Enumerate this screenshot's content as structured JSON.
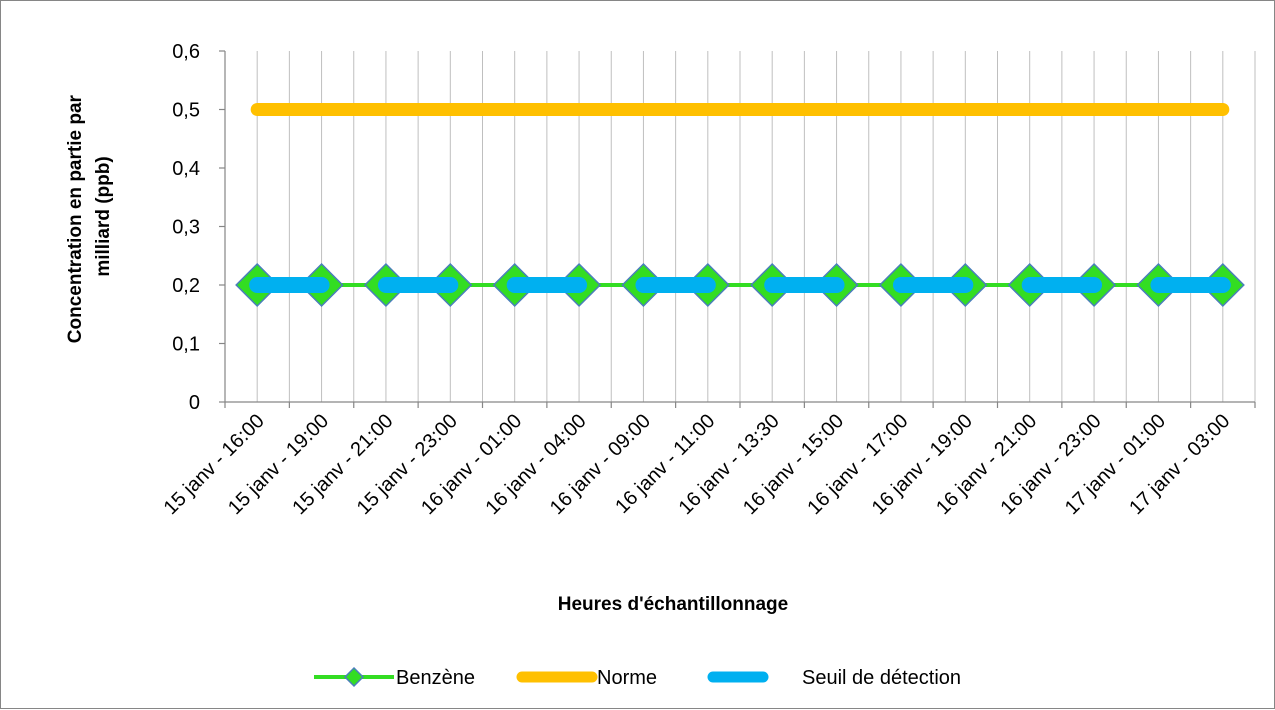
{
  "chart_data": {
    "type": "line",
    "title": "",
    "xlabel": "Heures d'échantillonnage",
    "ylabel": "Concentration en partie par milliard (ppb)",
    "ylabel_lines": [
      "Concentration en partie par",
      "milliard (ppb)"
    ],
    "ylim": [
      0,
      0.6
    ],
    "yticks": [
      "0",
      "0,1",
      "0,2",
      "0,3",
      "0,4",
      "0,5",
      "0,6"
    ],
    "ytick_values": [
      0,
      0.1,
      0.2,
      0.3,
      0.4,
      0.5,
      0.6
    ],
    "grid": "vertical",
    "legend_position": "bottom",
    "categories": [
      "15 janv - 16:00",
      "15 janv - 19:00",
      "15 janv - 21:00",
      "15 janv - 23:00",
      "16 janv - 01:00",
      "16 janv - 04:00",
      "16 janv - 09:00",
      "16 janv - 11:00",
      "16 janv - 13:30",
      "16 janv - 15:00",
      "16 janv - 17:00",
      "16 janv - 19:00",
      "16 janv - 21:00",
      "16 janv - 23:00",
      "17 janv - 01:00",
      "17 janv - 03:00"
    ],
    "series": [
      {
        "name": "Benzène",
        "color": "#33DD22",
        "marker": "diamond",
        "marker_color": "#33DD22",
        "line_style": "solid",
        "values": [
          0.2,
          0.2,
          0.2,
          0.2,
          0.2,
          0.2,
          0.2,
          0.2,
          0.2,
          0.2,
          0.2,
          0.2,
          0.2,
          0.2,
          0.2,
          0.2
        ]
      },
      {
        "name": "Norme",
        "color": "#FFC000",
        "marker": "none",
        "line_style": "solid-thick",
        "values": [
          0.5,
          0.5,
          0.5,
          0.5,
          0.5,
          0.5,
          0.5,
          0.5,
          0.5,
          0.5,
          0.5,
          0.5,
          0.5,
          0.5,
          0.5,
          0.5
        ]
      },
      {
        "name": "Seuil de détection",
        "color": "#00B0F0",
        "marker": "none",
        "line_style": "dashed-thick",
        "values": [
          0.2,
          0.2,
          0.2,
          0.2,
          0.2,
          0.2,
          0.2,
          0.2,
          0.2,
          0.2,
          0.2,
          0.2,
          0.2,
          0.2,
          0.2,
          0.2
        ]
      }
    ]
  }
}
